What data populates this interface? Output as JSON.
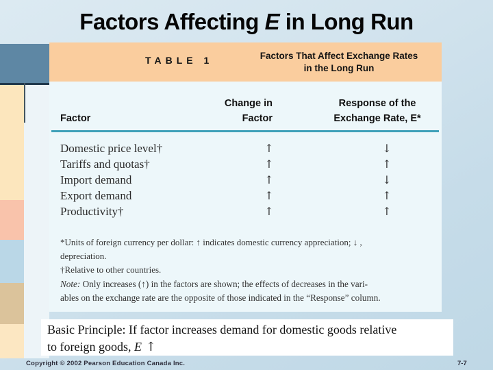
{
  "title": {
    "pre": "Factors Affecting ",
    "em": "E",
    "post": " in Long Run"
  },
  "table": {
    "label": "TABLE 1",
    "caption": {
      "line1": "Factors That Affect Exchange Rates",
      "line2": "in the Long Run"
    },
    "columns": {
      "factor": "Factor",
      "change_line1": "Change in",
      "change_line2": "Factor",
      "response_line1": "Response of the",
      "response_line2": "Exchange Rate, E*"
    },
    "rows": [
      {
        "factor": "Domestic price level†",
        "change": "↑",
        "response": "↓"
      },
      {
        "factor": "Tariffs and quotas†",
        "change": "↑",
        "response": "↑"
      },
      {
        "factor": "Import demand",
        "change": "↑",
        "response": "↓"
      },
      {
        "factor": "Export demand",
        "change": "↑",
        "response": "↑"
      },
      {
        "factor": "Productivity†",
        "change": "↑",
        "response": "↑"
      }
    ],
    "footnote1_line1": "*Units of foreign currency per dollar: ↑ indicates domestic currency appreciation; ↓ ,",
    "footnote1_line2": "depreciation.",
    "footnote2": "†Relative to other countries.",
    "note": {
      "label": "Note:",
      "line1": " Only increases (↑) in the factors are shown; the effects of decreases in the vari-",
      "line2": "ables on the exchange rate are the opposite of those indicated in the “Response” column."
    }
  },
  "principle": {
    "line1": "Basic Principle: If factor increases demand for domestic goods relative",
    "line2_pre": "to foreign goods, ",
    "line2_em": "E",
    "line2_arrow": " ↑"
  },
  "footer": {
    "copyright": "Copyright © 2002 Pearson Education Canada Inc.",
    "page": "7-7"
  },
  "colors": {
    "accent_teal": "#3FA0B8",
    "table_header_peach": "#FACD9E",
    "table_body_blue": "#EDF7FA",
    "deco_block_blue": "#5E87A4",
    "band_cream": "#FCE6BD",
    "band_salmon": "#F9C3AB",
    "band_blue": "#BAD7E7",
    "band_tan": "#DBC39B"
  }
}
